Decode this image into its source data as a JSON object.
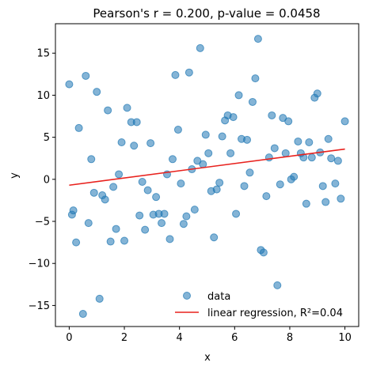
{
  "chart_data": {
    "type": "scatter",
    "title": "Pearson's r = 0.200, p-value = 0.0458",
    "xlabel": "x",
    "ylabel": "y",
    "xlim": [
      -0.5,
      10.5
    ],
    "ylim": [
      -17.5,
      18.5
    ],
    "xticks": [
      0,
      2,
      4,
      6,
      8,
      10
    ],
    "yticks": [
      -15,
      -10,
      -5,
      0,
      5,
      10,
      15
    ],
    "grid": false,
    "legend_position": "lower-right",
    "series": [
      {
        "name": "data",
        "color": "#1f77b4",
        "points": [
          [
            0.0,
            11.3
          ],
          [
            0.1,
            -4.2
          ],
          [
            0.15,
            -3.7
          ],
          [
            0.25,
            -7.5
          ],
          [
            0.35,
            6.1
          ],
          [
            0.5,
            -16.0
          ],
          [
            0.6,
            12.3
          ],
          [
            0.7,
            -5.2
          ],
          [
            0.8,
            2.4
          ],
          [
            0.9,
            -1.6
          ],
          [
            1.0,
            10.4
          ],
          [
            1.1,
            -14.2
          ],
          [
            1.2,
            -1.9
          ],
          [
            1.3,
            -2.4
          ],
          [
            1.4,
            8.2
          ],
          [
            1.5,
            -7.4
          ],
          [
            1.6,
            -0.9
          ],
          [
            1.7,
            -5.9
          ],
          [
            1.8,
            0.6
          ],
          [
            1.9,
            4.4
          ],
          [
            2.0,
            -7.3
          ],
          [
            2.1,
            8.5
          ],
          [
            2.25,
            6.8
          ],
          [
            2.35,
            4.0
          ],
          [
            2.45,
            6.8
          ],
          [
            2.55,
            -4.3
          ],
          [
            2.65,
            -0.3
          ],
          [
            2.75,
            -6.0
          ],
          [
            2.85,
            -1.3
          ],
          [
            2.95,
            4.3
          ],
          [
            3.05,
            -4.2
          ],
          [
            3.15,
            -2.1
          ],
          [
            3.25,
            -4.1
          ],
          [
            3.35,
            -5.2
          ],
          [
            3.45,
            -4.1
          ],
          [
            3.55,
            0.6
          ],
          [
            3.65,
            -7.1
          ],
          [
            3.75,
            2.4
          ],
          [
            3.85,
            12.4
          ],
          [
            3.95,
            5.9
          ],
          [
            4.05,
            -0.5
          ],
          [
            4.15,
            -5.3
          ],
          [
            4.25,
            -4.4
          ],
          [
            4.35,
            12.7
          ],
          [
            4.45,
            1.2
          ],
          [
            4.55,
            -3.6
          ],
          [
            4.65,
            2.2
          ],
          [
            4.75,
            15.6
          ],
          [
            4.85,
            1.8
          ],
          [
            4.95,
            5.3
          ],
          [
            5.05,
            3.1
          ],
          [
            5.15,
            -1.4
          ],
          [
            5.25,
            -6.9
          ],
          [
            5.35,
            -1.2
          ],
          [
            5.45,
            -0.4
          ],
          [
            5.55,
            5.1
          ],
          [
            5.65,
            7.0
          ],
          [
            5.75,
            7.6
          ],
          [
            5.85,
            3.1
          ],
          [
            5.95,
            7.4
          ],
          [
            6.05,
            -4.1
          ],
          [
            6.15,
            10.0
          ],
          [
            6.25,
            4.8
          ],
          [
            6.35,
            -0.8
          ],
          [
            6.45,
            4.7
          ],
          [
            6.55,
            0.8
          ],
          [
            6.65,
            9.2
          ],
          [
            6.75,
            12.0
          ],
          [
            6.85,
            16.7
          ],
          [
            6.95,
            -8.4
          ],
          [
            7.05,
            -8.7
          ],
          [
            7.15,
            -2.0
          ],
          [
            7.25,
            2.6
          ],
          [
            7.35,
            7.6
          ],
          [
            7.45,
            3.7
          ],
          [
            7.55,
            -12.6
          ],
          [
            7.65,
            -0.6
          ],
          [
            7.75,
            7.3
          ],
          [
            7.85,
            3.1
          ],
          [
            7.95,
            6.9
          ],
          [
            8.05,
            0.0
          ],
          [
            8.15,
            0.3
          ],
          [
            8.3,
            4.5
          ],
          [
            8.4,
            3.1
          ],
          [
            8.5,
            2.6
          ],
          [
            8.6,
            -2.9
          ],
          [
            8.7,
            4.4
          ],
          [
            8.8,
            2.6
          ],
          [
            8.9,
            9.7
          ],
          [
            9.0,
            10.2
          ],
          [
            9.1,
            3.2
          ],
          [
            9.2,
            -0.8
          ],
          [
            9.3,
            -2.7
          ],
          [
            9.4,
            4.8
          ],
          [
            9.5,
            2.5
          ],
          [
            9.65,
            -0.5
          ],
          [
            9.75,
            2.2
          ],
          [
            9.85,
            -2.3
          ],
          [
            10.0,
            6.9
          ]
        ]
      },
      {
        "name": "linear regression, R²=0.04",
        "color": "#e8211d",
        "line": [
          [
            0,
            -0.7
          ],
          [
            10,
            3.6
          ]
        ]
      }
    ]
  }
}
